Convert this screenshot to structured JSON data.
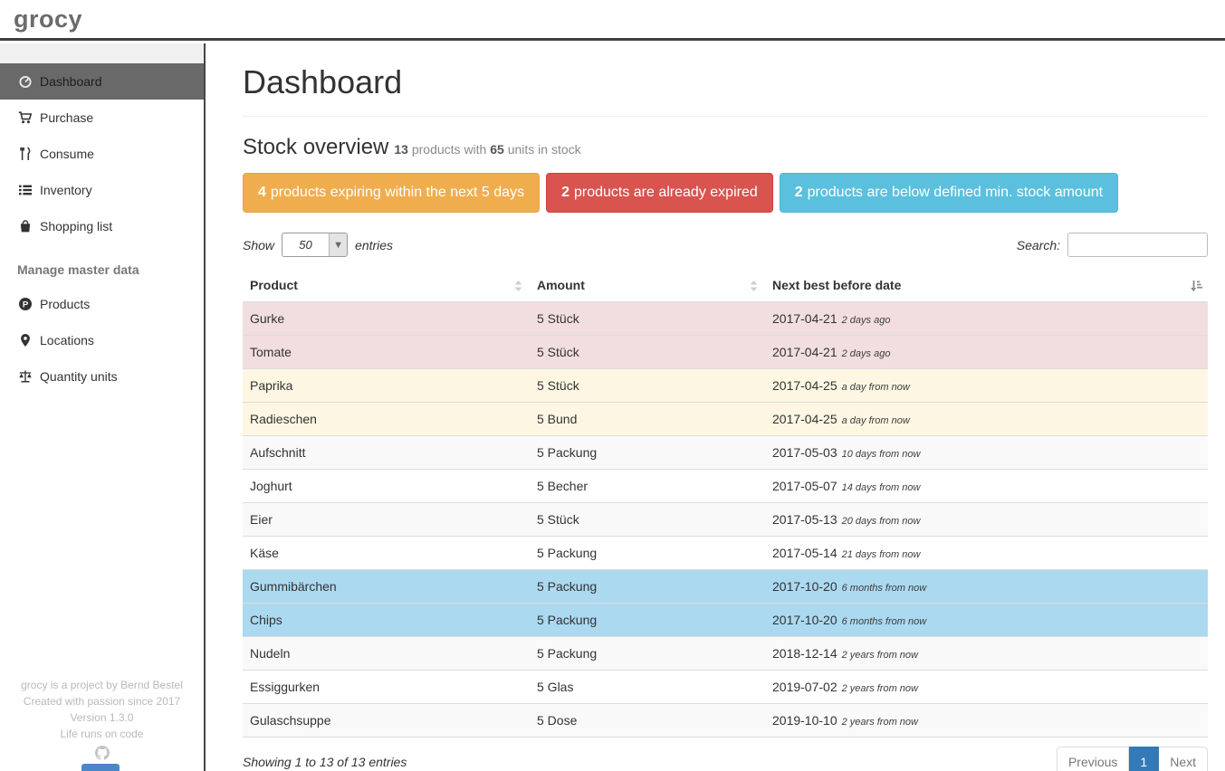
{
  "brand": "grocy",
  "sidebar": {
    "items": [
      {
        "label": "Dashboard",
        "icon": "dashboard-icon",
        "active": true
      },
      {
        "label": "Purchase",
        "icon": "cart-icon",
        "active": false
      },
      {
        "label": "Consume",
        "icon": "utensils-icon",
        "active": false
      },
      {
        "label": "Inventory",
        "icon": "list-icon",
        "active": false
      },
      {
        "label": "Shopping list",
        "icon": "shopping-bag-icon",
        "active": false
      }
    ],
    "section_header": "Manage master data",
    "master_items": [
      {
        "label": "Products",
        "icon": "product-icon",
        "active": false
      },
      {
        "label": "Locations",
        "icon": "map-marker-icon",
        "active": false
      },
      {
        "label": "Quantity units",
        "icon": "balance-scale-icon",
        "active": false
      }
    ],
    "footer_lines": [
      "grocy is a project by Bernd Bestel",
      "Created with passion since 2017",
      "Version 1.3.0",
      "Life runs on code"
    ]
  },
  "page": {
    "title": "Dashboard"
  },
  "stock": {
    "heading": "Stock overview",
    "products_count": "13",
    "mid_text": " products with ",
    "units_count": "65",
    "end_text": " units in stock",
    "alerts": [
      {
        "count": "4",
        "text": "products expiring within the next 5 days",
        "bg": "#f0ad4e",
        "border": "#eea236"
      },
      {
        "count": "2",
        "text": "products are already expired",
        "bg": "#d9534f",
        "border": "#d43f3a"
      },
      {
        "count": "2",
        "text": "products are below defined min. stock amount",
        "bg": "#5bc0de",
        "border": "#46b8da"
      }
    ]
  },
  "table": {
    "show_label": "Show",
    "page_length": "50",
    "entries_label": "entries",
    "search_label": "Search:",
    "search_value": "",
    "headers": [
      "Product",
      "Amount",
      "Next best before date"
    ],
    "rows": [
      {
        "product": "Gurke",
        "amount": "5 Stück",
        "date": "2017-04-21",
        "relative": "2 days ago",
        "state": "expired"
      },
      {
        "product": "Tomate",
        "amount": "5 Stück",
        "date": "2017-04-21",
        "relative": "2 days ago",
        "state": "expired"
      },
      {
        "product": "Paprika",
        "amount": "5 Stück",
        "date": "2017-04-25",
        "relative": "a day from now",
        "state": "expiring"
      },
      {
        "product": "Radieschen",
        "amount": "5 Bund",
        "date": "2017-04-25",
        "relative": "a day from now",
        "state": "expiring"
      },
      {
        "product": "Aufschnitt",
        "amount": "5 Packung",
        "date": "2017-05-03",
        "relative": "10 days from now",
        "state": "none"
      },
      {
        "product": "Joghurt",
        "amount": "5 Becher",
        "date": "2017-05-07",
        "relative": "14 days from now",
        "state": "none"
      },
      {
        "product": "Eier",
        "amount": "5 Stück",
        "date": "2017-05-13",
        "relative": "20 days from now",
        "state": "none"
      },
      {
        "product": "Käse",
        "amount": "5 Packung",
        "date": "2017-05-14",
        "relative": "21 days from now",
        "state": "none"
      },
      {
        "product": "Gummibärchen",
        "amount": "5 Packung",
        "date": "2017-10-20",
        "relative": "6 months from now",
        "state": "belowmin"
      },
      {
        "product": "Chips",
        "amount": "5 Packung",
        "date": "2017-10-20",
        "relative": "6 months from now",
        "state": "belowmin"
      },
      {
        "product": "Nudeln",
        "amount": "5 Packung",
        "date": "2018-12-14",
        "relative": "2 years from now",
        "state": "none"
      },
      {
        "product": "Essiggurken",
        "amount": "5 Glas",
        "date": "2019-07-02",
        "relative": "2 years from now",
        "state": "none"
      },
      {
        "product": "Gulaschsuppe",
        "amount": "5 Dose",
        "date": "2019-10-10",
        "relative": "2 years from now",
        "state": "none"
      }
    ],
    "info": "Showing 1 to 13 of 13 entries",
    "pagination": {
      "previous": "Previous",
      "page": "1",
      "next": "Next"
    }
  },
  "colors": {
    "row_expired": "#f2dede",
    "row_expiring": "#fcf6e3",
    "row_below_min": "#abd9f0",
    "active_page": "#337ab7",
    "sidebar_active": "#696969"
  }
}
